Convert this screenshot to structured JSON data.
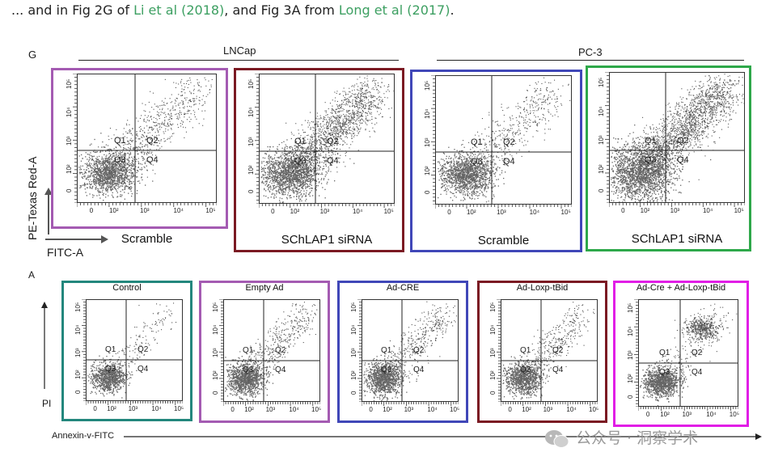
{
  "intro": {
    "prefix": "... and in Fig 2G of ",
    "link1": "Li et al (2018)",
    "middle": ", and Fig 3A from ",
    "link2": "Long et al (2017)",
    "suffix": "."
  },
  "panel_g": {
    "label": "G",
    "group1_title": "LNCap",
    "group2_title": "PC-3",
    "y_axis_label": "PE-Texas Red-A",
    "x_axis_label": "FITC-A",
    "quadrants": [
      "Q1",
      "Q2",
      "Q3",
      "Q4"
    ],
    "x_ticks": [
      "0",
      "10²",
      "10³",
      "10⁴",
      "10⁵"
    ],
    "y_ticks": [
      "0",
      "10²",
      "10³",
      "10⁴",
      "10⁵"
    ],
    "plots": [
      {
        "caption": "Scramble",
        "frame_color": "#a45bb2"
      },
      {
        "caption": "SChLAP1 siRNA",
        "frame_color": "#7b1a23"
      },
      {
        "caption": "Scramble",
        "frame_color": "#4047b8"
      },
      {
        "caption": "SChLAP1 siRNA",
        "frame_color": "#2ea84a"
      }
    ]
  },
  "panel_a": {
    "label": "A",
    "y_axis_label": "PI",
    "x_axis_label": "Annexin-v-FITC",
    "quadrants": [
      "Q1",
      "Q2",
      "Q3",
      "Q4"
    ],
    "x_ticks": [
      "0",
      "10²",
      "10³",
      "10⁴",
      "10⁵"
    ],
    "y_ticks": [
      "0",
      "10²",
      "10³",
      "10⁴",
      "10⁵"
    ],
    "plots": [
      {
        "title": "Control",
        "frame_color": "#23877d"
      },
      {
        "title": "Empty Ad",
        "frame_color": "#a45bb2"
      },
      {
        "title": "Ad-CRE",
        "frame_color": "#4047b8"
      },
      {
        "title": "Ad-Loxp-tBid",
        "frame_color": "#7b1a23"
      },
      {
        "title": "Ad-Cre + Ad-Loxp-tBid",
        "frame_color": "#e11ee6"
      }
    ]
  },
  "watermark": {
    "text": "公众号 · 洞察学术",
    "icon": "wechat-icon"
  }
}
